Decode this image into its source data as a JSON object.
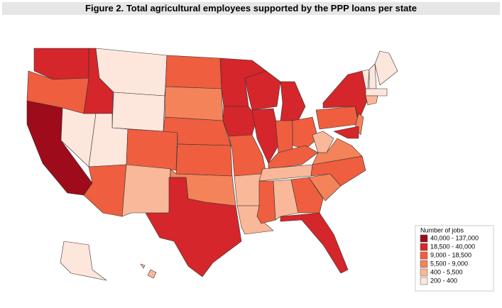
{
  "title": "Figure 2. Total agricultural employees supported by the PPP loans per state",
  "legend": {
    "title": "Number of jobs",
    "items": [
      {
        "label": "40,000 - 137,000",
        "color": "#9e0b1a"
      },
      {
        "label": "18,500 - 40,000",
        "color": "#d4262b"
      },
      {
        "label": "9,000 - 18,500",
        "color": "#ef5e3f"
      },
      {
        "label": "5,500 - 9,000",
        "color": "#f4835a"
      },
      {
        "label": "400 - 5,500",
        "color": "#f9b89a"
      },
      {
        "label": "200 - 400",
        "color": "#fde6dc"
      }
    ]
  }
}
